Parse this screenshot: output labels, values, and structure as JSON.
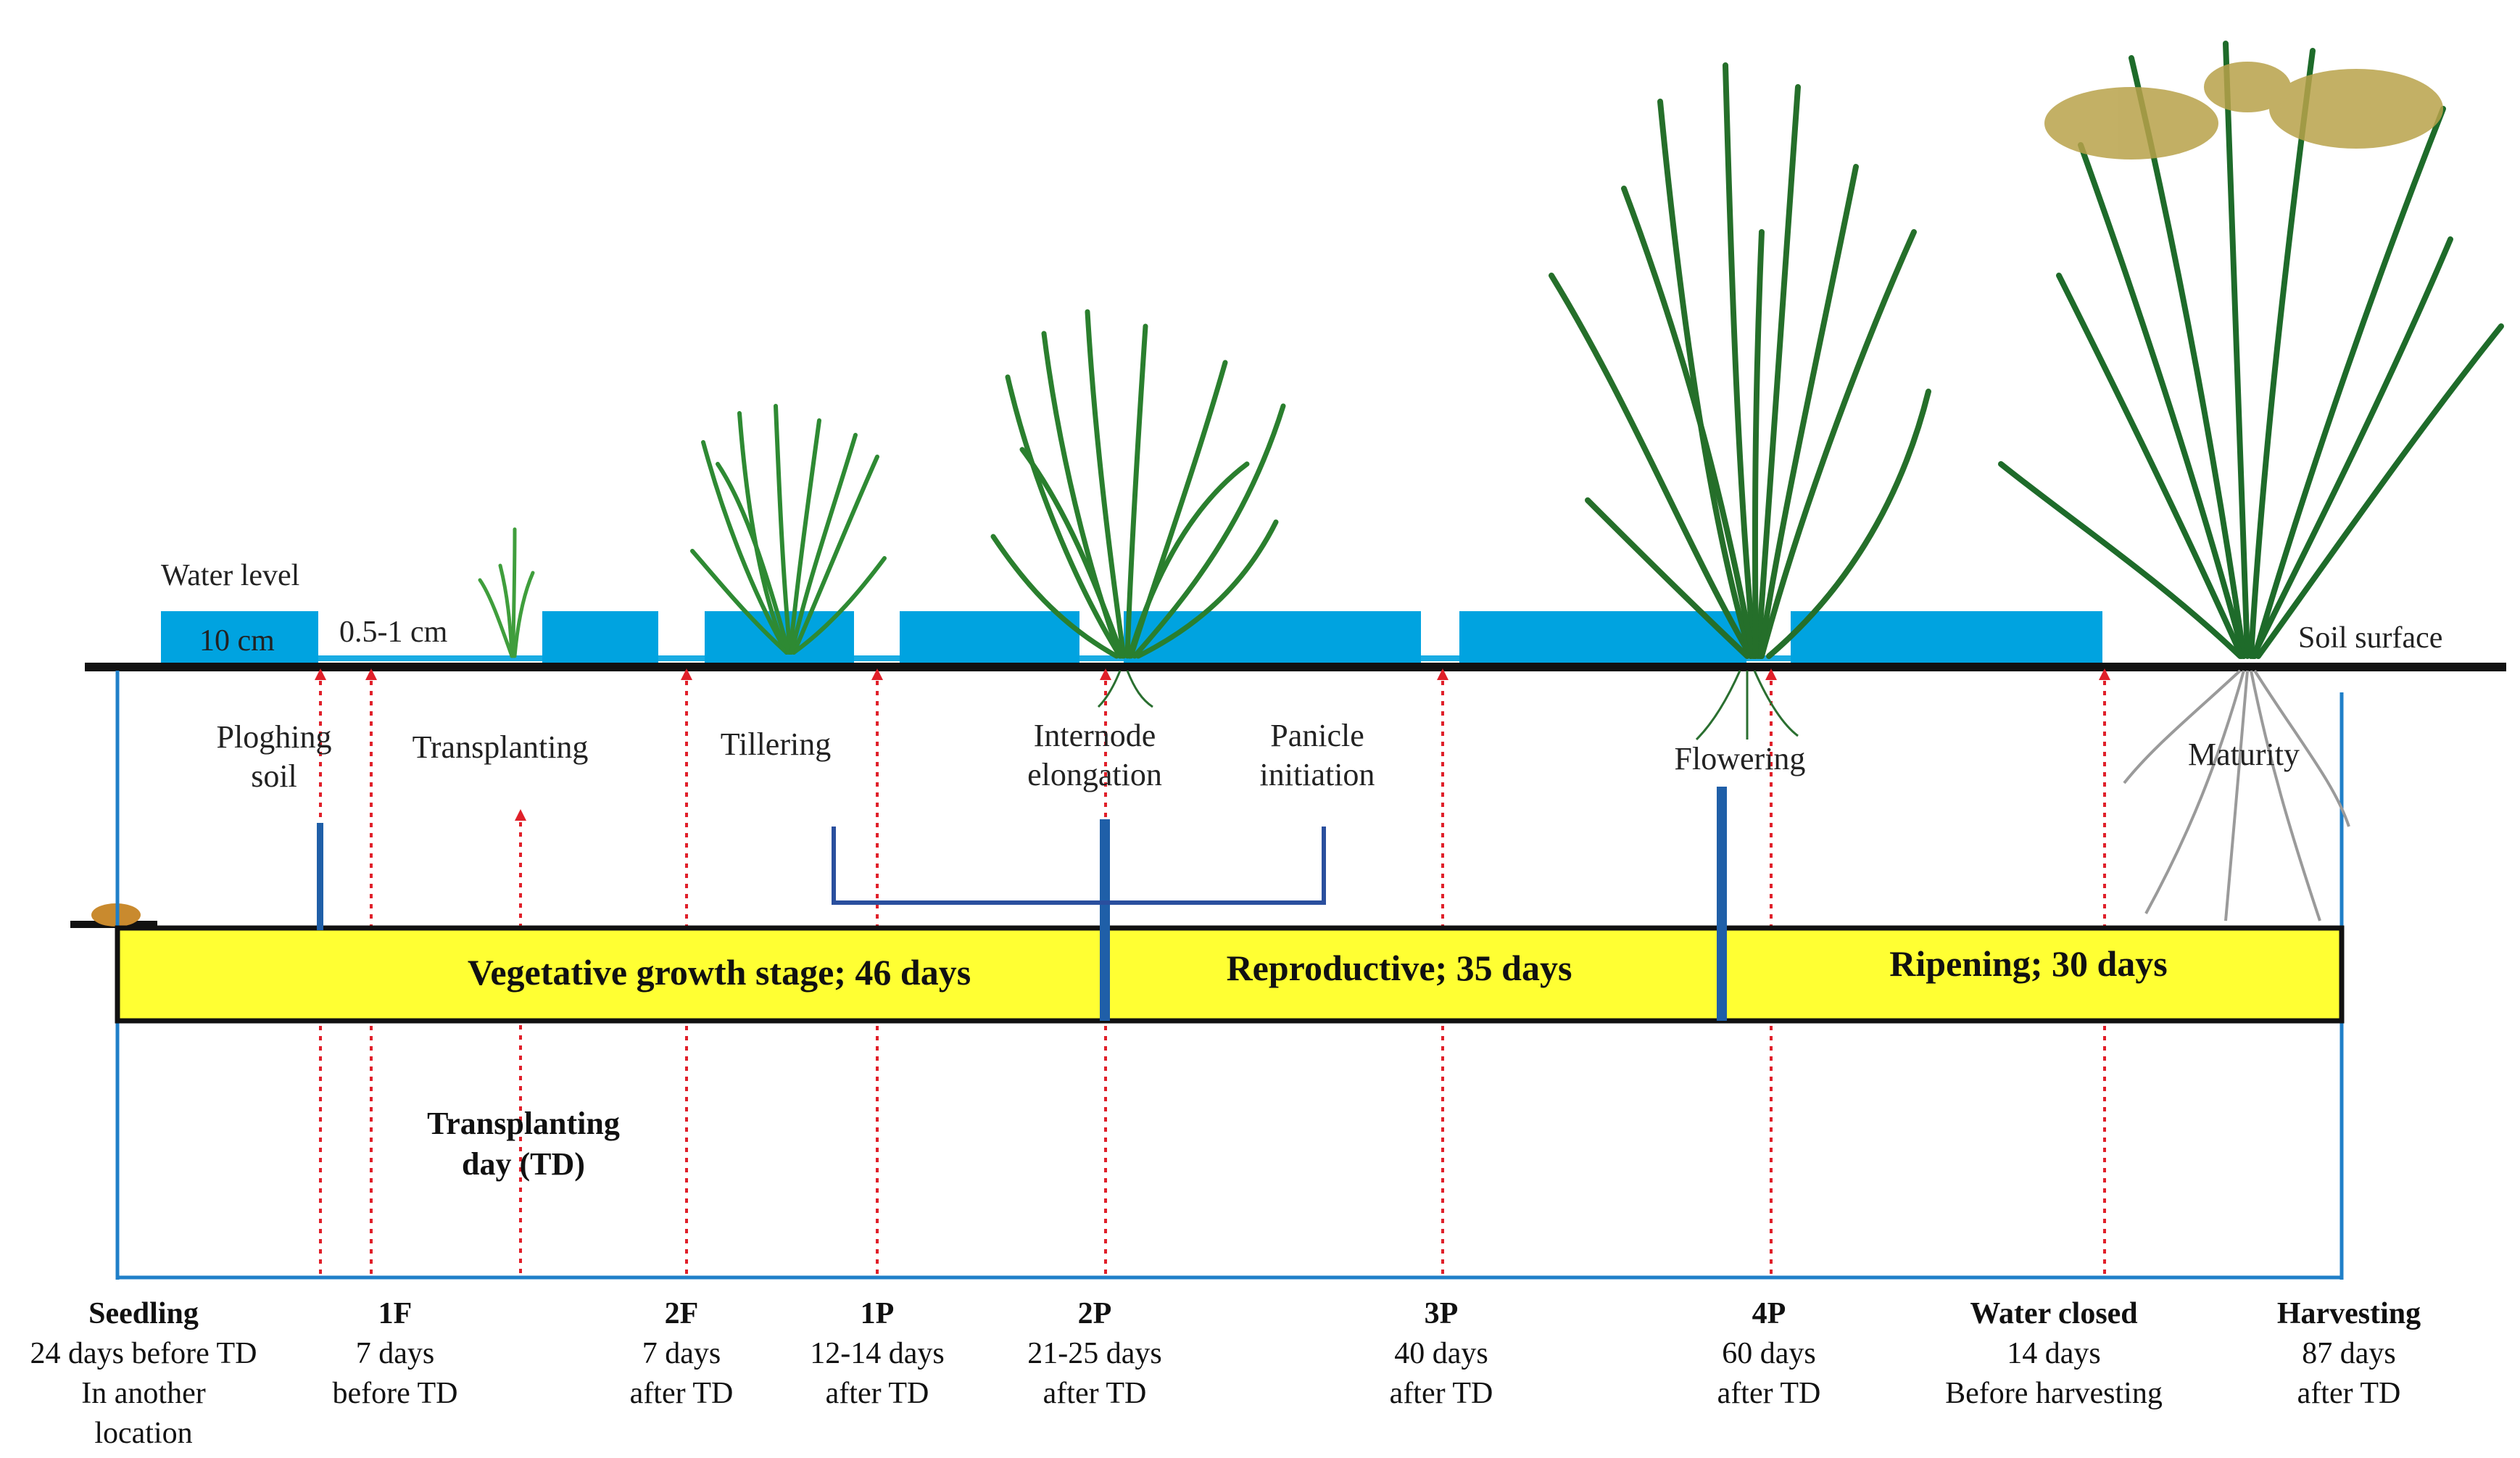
{
  "water": {
    "label": "Water level",
    "depth_10": "10 cm",
    "depth_small": "0.5-1 cm"
  },
  "soil_label": "Soil surface",
  "events": {
    "ploughing": [
      "Ploghing",
      "soil"
    ],
    "transplanting": "Transplanting",
    "tillering": "Tillering",
    "internode": [
      "Internode",
      "elongation"
    ],
    "panicle": [
      "Panicle",
      "initiation"
    ],
    "flowering": "Flowering",
    "maturity": "Maturity"
  },
  "stages": {
    "vegetative": "Vegetative growth stage; 46 days",
    "reproductive": "Reproductive; 35 days",
    "ripening": "Ripening; 30 days"
  },
  "transplanting_day": [
    "Transplanting",
    "day (TD)"
  ],
  "timeline": [
    {
      "title": "Seedling",
      "lines": [
        "24 days before TD",
        "In another",
        "location"
      ]
    },
    {
      "title": "1F",
      "lines": [
        "7 days",
        "before TD"
      ]
    },
    {
      "title": "2F",
      "lines": [
        "7 days",
        "after TD"
      ]
    },
    {
      "title": "1P",
      "lines": [
        "12-14 days",
        "after TD"
      ]
    },
    {
      "title": "2P",
      "lines": [
        "21-25 days",
        "after TD"
      ]
    },
    {
      "title": "3P",
      "lines": [
        "40 days",
        "after TD"
      ]
    },
    {
      "title": "4P",
      "lines": [
        "60 days",
        "after TD"
      ]
    },
    {
      "title": "Water closed",
      "lines": [
        "14 days",
        "Before harvesting"
      ]
    },
    {
      "title": "Harvesting",
      "lines": [
        "87 days",
        "after TD"
      ]
    }
  ],
  "colors": {
    "water": "#00a3e0",
    "stage_bar": "#ffff33",
    "marker": "#1f5fa8",
    "guide": "#e0202a",
    "plant_dark": "#1e6b2a",
    "plant_light": "#3f9e3c",
    "grain": "#b8a24a",
    "root": "#9a9a9a"
  }
}
